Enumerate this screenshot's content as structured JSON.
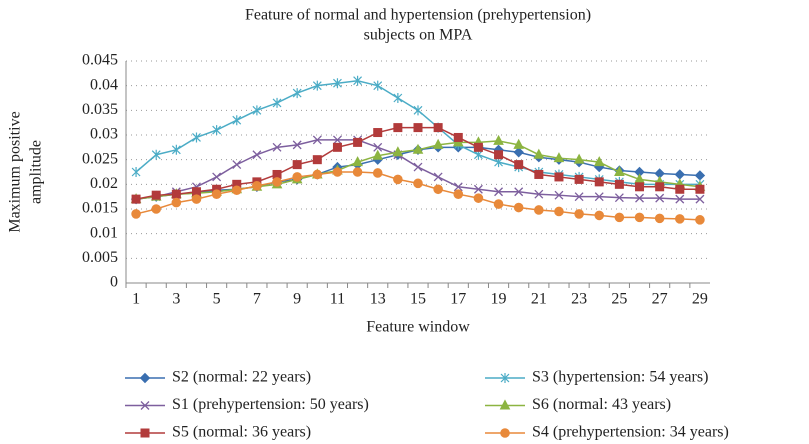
{
  "chart_data": {
    "type": "line",
    "title": [
      "Feature of normal and hypertension (prehypertension)",
      "subjects on MPA"
    ],
    "x_label": "Feature window",
    "y_label": [
      "Maximum positive",
      "amplitude"
    ],
    "categories": [
      1,
      null,
      3,
      null,
      5,
      null,
      7,
      null,
      9,
      null,
      11,
      null,
      13,
      null,
      15,
      null,
      17,
      null,
      19,
      null,
      21,
      null,
      23,
      null,
      25,
      null,
      27,
      null,
      29
    ],
    "ylim": [
      0,
      0.045
    ],
    "yticks": [
      0,
      0.005,
      0.01,
      0.015,
      0.02,
      0.025,
      0.03,
      0.035,
      0.04,
      0.045
    ],
    "grid": true,
    "legend": "bottom",
    "series": [
      {
        "name": "S2 (normal: 22 years)",
        "color": "#3a6fb0",
        "marker": "diamond",
        "values": [
          0.017,
          0.0175,
          0.018,
          0.0183,
          0.0188,
          0.019,
          0.0195,
          0.0205,
          0.021,
          0.022,
          0.0235,
          0.024,
          0.025,
          0.026,
          0.027,
          0.0275,
          0.0275,
          0.0275,
          0.027,
          0.0265,
          0.0255,
          0.025,
          0.0245,
          0.0235,
          0.0228,
          0.0225,
          0.0222,
          0.022,
          0.0218
        ]
      },
      {
        "name": "S3 (hypertension: 54 years)",
        "color": "#4bacc6",
        "marker": "asterisk",
        "values": [
          0.0225,
          0.026,
          0.027,
          0.0295,
          0.031,
          0.033,
          0.035,
          0.0365,
          0.0385,
          0.04,
          0.0405,
          0.041,
          0.04,
          0.0375,
          0.035,
          0.0315,
          0.028,
          0.026,
          0.0245,
          0.0235,
          0.0225,
          0.022,
          0.0215,
          0.021,
          0.0205,
          0.02,
          0.02,
          0.02,
          0.02
        ]
      },
      {
        "name": "S1 (prehypertension: 50 years)",
        "color": "#7d5f9e",
        "marker": "x",
        "values": [
          0.017,
          0.0175,
          0.0185,
          0.0195,
          0.0215,
          0.024,
          0.026,
          0.0275,
          0.028,
          0.029,
          0.029,
          0.029,
          0.0275,
          0.026,
          0.0235,
          0.0215,
          0.0195,
          0.019,
          0.0185,
          0.0185,
          0.018,
          0.0178,
          0.0175,
          0.0175,
          0.0173,
          0.0172,
          0.0172,
          0.017,
          0.017
        ]
      },
      {
        "name": "S6 (normal: 43 years)",
        "color": "#8cb441",
        "marker": "triangle",
        "values": [
          0.017,
          0.0175,
          0.018,
          0.0182,
          0.0185,
          0.019,
          0.0195,
          0.02,
          0.021,
          0.022,
          0.0228,
          0.0245,
          0.0258,
          0.0265,
          0.027,
          0.028,
          0.0285,
          0.0285,
          0.0288,
          0.028,
          0.026,
          0.0253,
          0.025,
          0.0245,
          0.0225,
          0.021,
          0.0205,
          0.02,
          0.0195
        ]
      },
      {
        "name": "S5 (normal: 36 years)",
        "color": "#b23b3b",
        "marker": "square",
        "values": [
          0.017,
          0.0178,
          0.018,
          0.0185,
          0.019,
          0.02,
          0.0205,
          0.022,
          0.024,
          0.025,
          0.0275,
          0.0285,
          0.0305,
          0.0315,
          0.0315,
          0.0315,
          0.0295,
          0.0275,
          0.026,
          0.024,
          0.022,
          0.0215,
          0.021,
          0.0205,
          0.02,
          0.0195,
          0.0195,
          0.019,
          0.019
        ]
      },
      {
        "name": "S4 (prehypertension: 34 years)",
        "color": "#e8893a",
        "marker": "circle",
        "values": [
          0.014,
          0.015,
          0.0163,
          0.017,
          0.018,
          0.0188,
          0.0197,
          0.0205,
          0.0215,
          0.022,
          0.0225,
          0.0225,
          0.0223,
          0.021,
          0.0202,
          0.019,
          0.018,
          0.0172,
          0.016,
          0.0153,
          0.0148,
          0.0145,
          0.014,
          0.0137,
          0.0133,
          0.0133,
          0.0131,
          0.013,
          0.0128
        ]
      }
    ]
  }
}
